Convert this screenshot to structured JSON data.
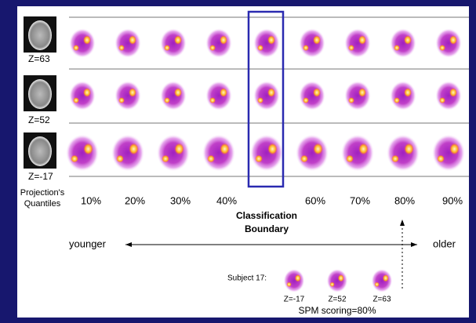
{
  "left_slices": [
    "Z=63",
    "Z=52",
    "Z=-17"
  ],
  "quantiles_heading": [
    "Projection's",
    "Quantiles"
  ],
  "quantiles": [
    "10%",
    "20%",
    "30%",
    "40%",
    "60%",
    "70%",
    "80%",
    "90%"
  ],
  "boundary_label": [
    "Classification",
    "Boundary"
  ],
  "age_axis": {
    "left": "younger",
    "right": "older"
  },
  "subject": {
    "label": "Subject 17:",
    "slices": [
      "Z=-17",
      "Z=52",
      "Z=63"
    ],
    "scoring": "SPM scoring=80%"
  }
}
